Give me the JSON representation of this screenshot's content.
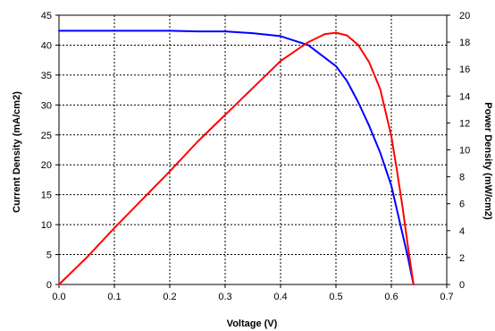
{
  "chart_data": {
    "type": "line",
    "xlabel": "Voltage (V)",
    "ylabel_left": "Current Density (mA/cm2)",
    "ylabel_right": "Power Density (mW/cm2)",
    "xlim": [
      0,
      0.7
    ],
    "ylim_left": [
      0,
      45
    ],
    "ylim_right": [
      0,
      20
    ],
    "x_ticks": [
      "0.0",
      "0.1",
      "0.2",
      "0.3",
      "0.4",
      "0.5",
      "0.6",
      "0.7"
    ],
    "y_left_ticks": [
      "0",
      "5",
      "10",
      "15",
      "20",
      "25",
      "30",
      "35",
      "40",
      "45"
    ],
    "y_right_ticks": [
      "0",
      "2",
      "4",
      "6",
      "8",
      "10",
      "12",
      "14",
      "16",
      "18",
      "20"
    ],
    "grid": true,
    "series": [
      {
        "axis": "left",
        "color": "#0000ff",
        "x": [
          0.0,
          0.05,
          0.1,
          0.15,
          0.2,
          0.25,
          0.3,
          0.35,
          0.4,
          0.45,
          0.5,
          0.52,
          0.54,
          0.56,
          0.58,
          0.6,
          0.61,
          0.62,
          0.63,
          0.64
        ],
        "y": [
          42.4,
          42.4,
          42.4,
          42.4,
          42.4,
          42.3,
          42.3,
          42.0,
          41.5,
          40.0,
          36.5,
          34.0,
          30.5,
          26.5,
          22.0,
          16.5,
          12.5,
          8.5,
          4.5,
          0.0
        ]
      },
      {
        "axis": "right",
        "color": "#ff0000",
        "x": [
          0.0,
          0.05,
          0.1,
          0.15,
          0.2,
          0.25,
          0.3,
          0.35,
          0.4,
          0.45,
          0.48,
          0.5,
          0.52,
          0.54,
          0.56,
          0.58,
          0.6,
          0.61,
          0.62,
          0.63,
          0.64
        ],
        "y": [
          0.0,
          2.0,
          4.2,
          6.3,
          8.4,
          10.6,
          12.6,
          14.6,
          16.6,
          18.0,
          18.6,
          18.7,
          18.5,
          17.8,
          16.5,
          14.5,
          11.0,
          8.5,
          5.8,
          2.8,
          0.0
        ]
      }
    ]
  }
}
